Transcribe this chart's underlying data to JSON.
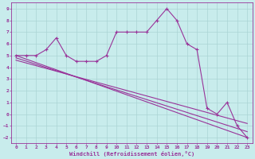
{
  "xlabel": "Windchill (Refroidissement éolien,°C)",
  "bg_color": "#c8ecec",
  "grid_color": "#b0d8d8",
  "line_color": "#993399",
  "xlim": [
    -0.5,
    23.5
  ],
  "ylim": [
    -2.5,
    9.5
  ],
  "yticks": [
    -2,
    -1,
    0,
    1,
    2,
    3,
    4,
    5,
    6,
    7,
    8,
    9
  ],
  "xticks": [
    0,
    1,
    2,
    3,
    4,
    5,
    6,
    7,
    8,
    9,
    10,
    11,
    12,
    13,
    14,
    15,
    16,
    17,
    18,
    19,
    20,
    21,
    22,
    23
  ],
  "series1_x": [
    0,
    1,
    2,
    3,
    4,
    5,
    6,
    7,
    8,
    9,
    10,
    11,
    12,
    13,
    14,
    15,
    16,
    17,
    18,
    19,
    20,
    21,
    22,
    23
  ],
  "series1_y": [
    5,
    5,
    5,
    5.5,
    6.5,
    5,
    4.5,
    4.5,
    4.5,
    5,
    7,
    7,
    7,
    7,
    8,
    9,
    8,
    6,
    5.5,
    0.5,
    0,
    1,
    -1,
    -2
  ],
  "series2_x": [
    0,
    23
  ],
  "series2_y": [
    5,
    -2
  ],
  "series3_x": [
    0,
    23
  ],
  "series3_y": [
    4.8,
    -1.5
  ],
  "series4_x": [
    0,
    23
  ],
  "series4_y": [
    4.6,
    -0.8
  ]
}
